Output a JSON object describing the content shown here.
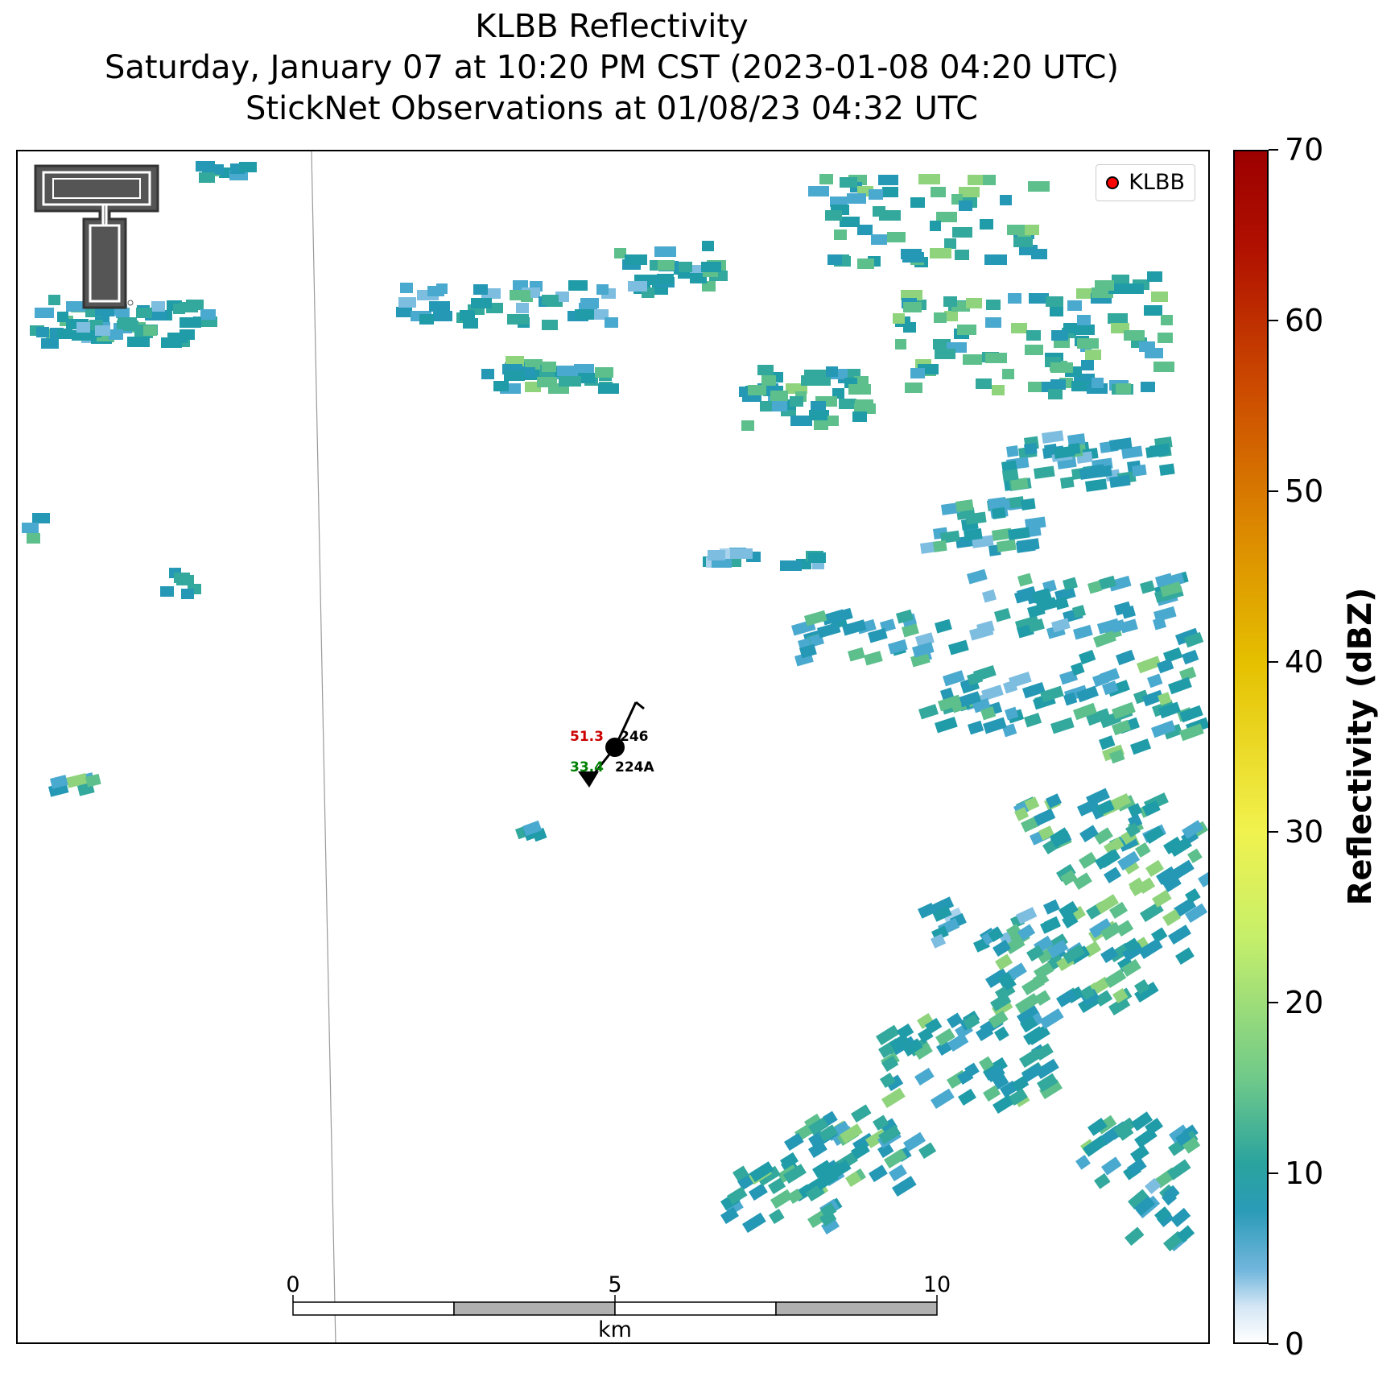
{
  "title": {
    "line1": "KLBB Reflectivity",
    "line2": "Saturday, January 07 at 10:20 PM CST (2023-01-08 04:20 UTC)",
    "line3": "StickNet Observations at 01/08/23 04:32 UTC"
  },
  "legend": {
    "label": "KLBB",
    "marker_color": "#ff0000"
  },
  "colorbar": {
    "label": "Reflectivity (dBZ)",
    "ticks": [
      "0",
      "10",
      "20",
      "30",
      "40",
      "50",
      "60",
      "70"
    ],
    "range": [
      0,
      70
    ],
    "colors": [
      "#ffffff",
      "#73b7dd",
      "#2b9bb8",
      "#6ec98a",
      "#f1f24e",
      "#e5c000",
      "#dc8a00",
      "#b01000"
    ]
  },
  "station": {
    "temperature": "51.3",
    "dewpoint": "33.4",
    "id_top": "246",
    "id_bottom": "224A",
    "temperature_color": "#cc0000",
    "dewpoint_color": "#008000"
  },
  "scale_bar": {
    "ticks": [
      "0",
      "5",
      "10"
    ],
    "unit": "km"
  },
  "logo": {
    "name": "texas-tech-double-t-logo"
  }
}
